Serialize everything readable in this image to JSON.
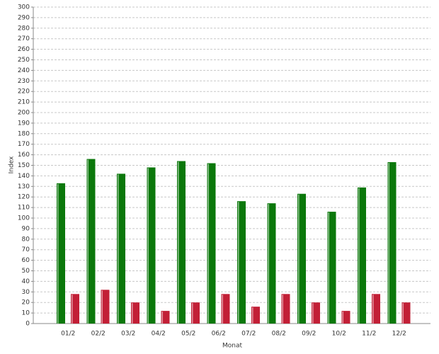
{
  "chart_data": {
    "type": "bar",
    "x_label": "Monat",
    "y_label": "Index",
    "categories": [
      "01/2",
      "02/2",
      "03/2",
      "04/2",
      "05/2",
      "06/2",
      "07/2",
      "08/2",
      "09/2",
      "10/2",
      "11/2",
      "12/2"
    ],
    "series": [
      {
        "color": "#0b780b",
        "values": [
          133,
          156,
          142,
          148,
          154,
          152,
          116,
          114,
          123,
          106,
          129,
          153
        ]
      },
      {
        "color": "#c21f36",
        "values": [
          28,
          32,
          20,
          12,
          20,
          28,
          16,
          28,
          20,
          12,
          28,
          20
        ]
      }
    ],
    "ylim": [
      0,
      300
    ],
    "yticks": [
      0,
      10,
      20,
      30,
      40,
      50,
      60,
      70,
      80,
      90,
      100,
      110,
      120,
      130,
      140,
      150,
      160,
      170,
      180,
      190,
      200,
      210,
      220,
      230,
      240,
      250,
      260,
      270,
      280,
      290,
      300
    ],
    "grid": true
  }
}
